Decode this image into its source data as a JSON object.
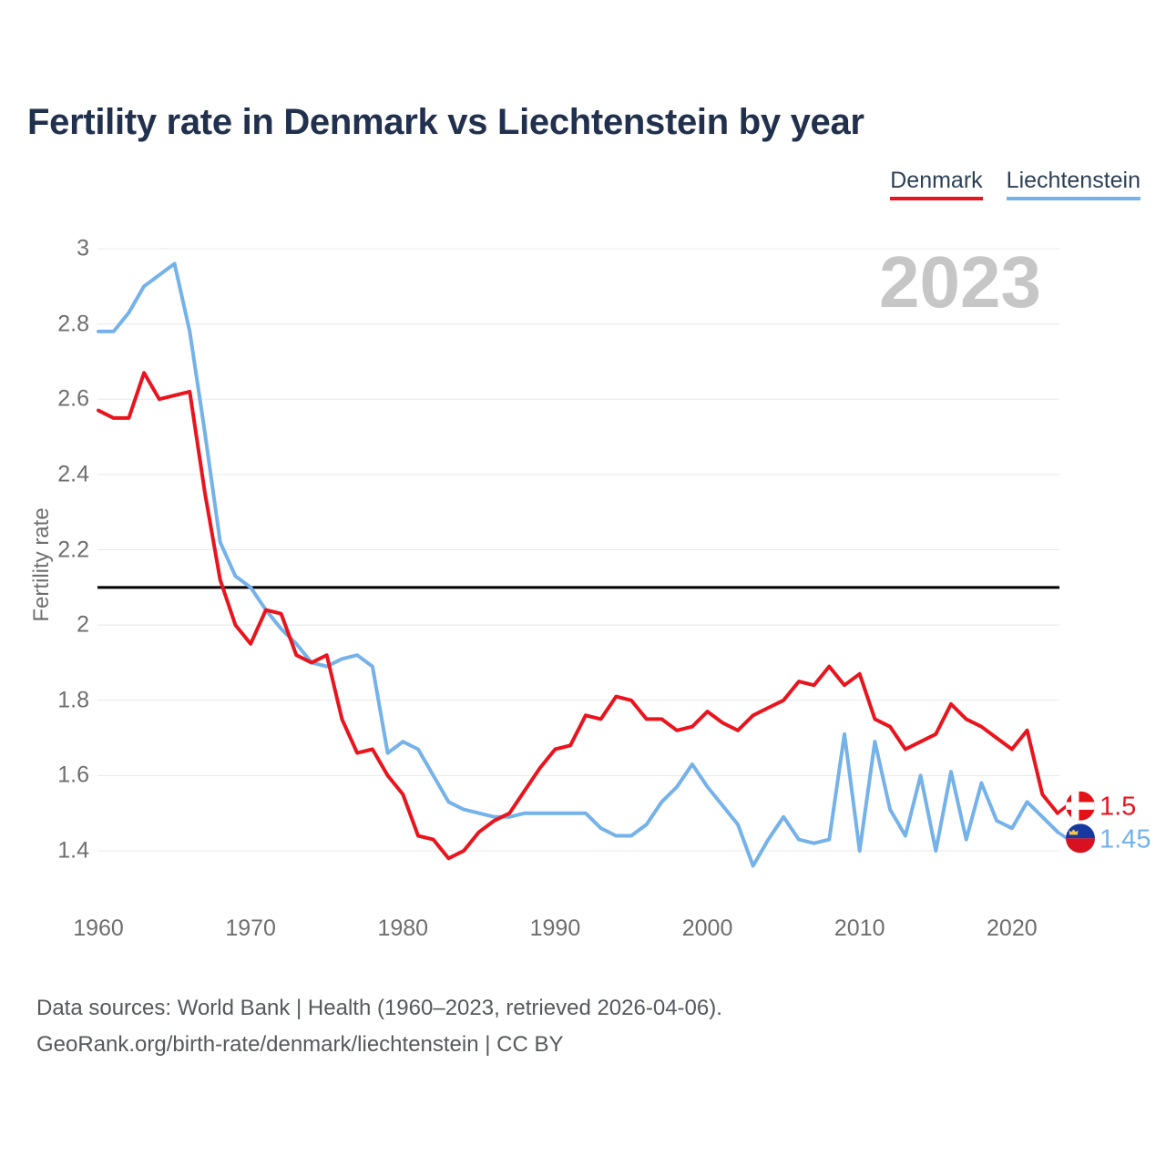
{
  "title": "Fertility rate in Denmark vs Liechtenstein by year",
  "watermark": "2023",
  "legend": [
    {
      "label": "Denmark",
      "color": "#e9141d"
    },
    {
      "label": "Liechtenstein",
      "color": "#74b2e9"
    }
  ],
  "y_axis": {
    "label": "Fertility rate"
  },
  "footer": {
    "line1": "Data sources: World Bank | Health (1960–2023, retrieved 2026-04-06).",
    "line2": "GeoRank.org/birth-rate/denmark/liechtenstein | CC BY"
  },
  "end_labels": [
    {
      "series": "Denmark",
      "value": "1.5",
      "flag": "denmark"
    },
    {
      "series": "Liechtenstein",
      "value": "1.45",
      "flag": "liechtenstein"
    }
  ],
  "colors": {
    "denmark": "#e9141d",
    "liechtenstein": "#74b2e9",
    "reference_line": "#000000",
    "gridline": "#e8e8e8",
    "flag_dk_red": "#e31219",
    "flag_li_blue": "#16399f",
    "flag_li_red": "#d8101f",
    "flag_li_crown": "#f6c945"
  },
  "chart_data": {
    "type": "line",
    "title": "Fertility rate in Denmark vs Liechtenstein by year",
    "xlabel": "",
    "ylabel": "Fertility rate",
    "x_range": [
      1960,
      2023
    ],
    "ylim": [
      1.4,
      3.0
    ],
    "y_ticks": [
      3,
      2.8,
      2.6,
      2.4,
      2.2,
      2,
      1.8,
      1.6,
      1.4
    ],
    "x_ticks": [
      1960,
      1970,
      1980,
      1990,
      2000,
      2010,
      2020
    ],
    "grid": "horizontal",
    "legend_position": "top-right",
    "reference_line": {
      "value": 2.1
    },
    "years": [
      1960,
      1961,
      1962,
      1963,
      1964,
      1965,
      1966,
      1967,
      1968,
      1969,
      1970,
      1971,
      1972,
      1973,
      1974,
      1975,
      1976,
      1977,
      1978,
      1979,
      1980,
      1981,
      1982,
      1983,
      1984,
      1985,
      1986,
      1987,
      1988,
      1989,
      1990,
      1991,
      1992,
      1993,
      1994,
      1995,
      1996,
      1997,
      1998,
      1999,
      2000,
      2001,
      2002,
      2003,
      2004,
      2005,
      2006,
      2007,
      2008,
      2009,
      2010,
      2011,
      2012,
      2013,
      2014,
      2015,
      2016,
      2017,
      2018,
      2019,
      2020,
      2021,
      2022,
      2023
    ],
    "series": [
      {
        "name": "Denmark",
        "color": "#e9141d",
        "end_value": 1.5,
        "values": [
          2.57,
          2.55,
          2.55,
          2.67,
          2.6,
          2.61,
          2.62,
          2.35,
          2.12,
          2.0,
          1.95,
          2.04,
          2.03,
          1.92,
          1.9,
          1.92,
          1.75,
          1.66,
          1.67,
          1.6,
          1.55,
          1.44,
          1.43,
          1.38,
          1.4,
          1.45,
          1.48,
          1.5,
          1.56,
          1.62,
          1.67,
          1.68,
          1.76,
          1.75,
          1.81,
          1.8,
          1.75,
          1.75,
          1.72,
          1.73,
          1.77,
          1.74,
          1.72,
          1.76,
          1.78,
          1.8,
          1.85,
          1.84,
          1.89,
          1.84,
          1.87,
          1.75,
          1.73,
          1.67,
          1.69,
          1.71,
          1.79,
          1.75,
          1.73,
          1.7,
          1.67,
          1.72,
          1.55,
          1.5
        ]
      },
      {
        "name": "Liechtenstein",
        "color": "#74b2e9",
        "end_value": 1.45,
        "values": [
          2.78,
          2.78,
          2.83,
          2.9,
          2.93,
          2.96,
          2.78,
          2.51,
          2.22,
          2.13,
          2.1,
          2.04,
          1.99,
          1.95,
          1.9,
          1.89,
          1.91,
          1.92,
          1.89,
          1.66,
          1.69,
          1.67,
          1.6,
          1.53,
          1.51,
          1.5,
          1.49,
          1.49,
          1.5,
          1.5,
          1.5,
          1.5,
          1.5,
          1.46,
          1.44,
          1.44,
          1.47,
          1.53,
          1.57,
          1.63,
          1.57,
          1.52,
          1.47,
          1.36,
          1.43,
          1.49,
          1.43,
          1.42,
          1.43,
          1.71,
          1.4,
          1.69,
          1.51,
          1.44,
          1.6,
          1.4,
          1.61,
          1.43,
          1.58,
          1.48,
          1.46,
          1.53,
          1.49,
          1.45
        ]
      }
    ]
  }
}
